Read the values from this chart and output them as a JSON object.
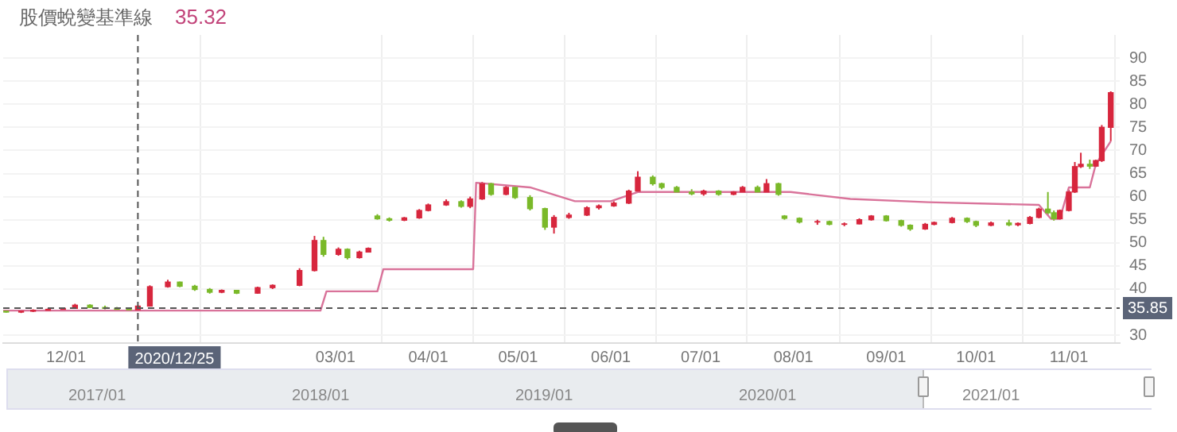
{
  "chart_data": {
    "type": "candlestick",
    "title": "股價蛻變基準線",
    "subtitle": "35.32",
    "x": [
      "2020-11-11",
      "2020-11-16",
      "2020-11-20",
      "2020-11-25",
      "2020-11-30",
      "2020-12-04",
      "2020-12-09",
      "2020-12-14",
      "2020-12-18",
      "2020-12-22",
      "2020-12-25",
      "2020-12-29",
      "2021-01-04",
      "2021-01-08",
      "2021-01-13",
      "2021-01-18",
      "2021-01-22",
      "2021-01-27",
      "2021-02-03",
      "2021-02-08",
      "2021-02-17",
      "2021-02-22",
      "2021-02-25",
      "2021-03-02",
      "2021-03-05",
      "2021-03-09",
      "2021-03-12",
      "2021-03-15",
      "2021-03-19",
      "2021-03-24",
      "2021-03-29",
      "2021-04-01",
      "2021-04-07",
      "2021-04-12",
      "2021-04-15",
      "2021-04-19",
      "2021-04-22",
      "2021-04-27",
      "2021-04-30",
      "2021-05-05",
      "2021-05-10",
      "2021-05-13",
      "2021-05-18",
      "2021-05-24",
      "2021-05-28",
      "2021-06-02",
      "2021-06-07",
      "2021-06-10",
      "2021-06-15",
      "2021-06-18",
      "2021-06-23",
      "2021-06-28",
      "2021-07-02",
      "2021-07-07",
      "2021-07-12",
      "2021-07-15",
      "2021-07-20",
      "2021-07-23",
      "2021-07-27",
      "2021-07-29",
      "2021-08-03",
      "2021-08-09",
      "2021-08-13",
      "2021-08-18",
      "2021-08-23",
      "2021-08-27",
      "2021-09-01",
      "2021-09-06",
      "2021-09-09",
      "2021-09-14",
      "2021-09-17",
      "2021-09-23",
      "2021-09-28",
      "2021-10-01",
      "2021-10-06",
      "2021-10-12",
      "2021-10-15",
      "2021-10-19",
      "2021-10-22",
      "2021-10-25",
      "2021-10-27",
      "2021-10-29",
      "2021-11-01",
      "2021-11-03",
      "2021-11-05",
      "2021-11-08",
      "2021-11-10",
      "2021-11-12",
      "2021-11-15"
    ],
    "ohlc": [
      [
        35.2,
        35.4,
        34.9,
        35.0
      ],
      [
        35.0,
        35.3,
        34.8,
        35.2
      ],
      [
        35.2,
        35.6,
        35.0,
        35.4
      ],
      [
        35.4,
        35.8,
        35.2,
        35.6
      ],
      [
        35.6,
        36.0,
        35.4,
        35.8
      ],
      [
        35.8,
        36.8,
        35.7,
        36.5
      ],
      [
        36.5,
        36.7,
        35.9,
        36.0
      ],
      [
        36.0,
        36.4,
        35.6,
        35.8
      ],
      [
        35.8,
        36.1,
        35.4,
        35.6
      ],
      [
        35.6,
        35.8,
        35.3,
        35.5
      ],
      [
        35.5,
        36.5,
        35.4,
        36.3
      ],
      [
        36.3,
        40.8,
        36.2,
        40.5
      ],
      [
        40.5,
        42.0,
        40.3,
        41.5
      ],
      [
        41.5,
        41.6,
        40.4,
        40.6
      ],
      [
        40.6,
        40.9,
        39.6,
        39.9
      ],
      [
        39.9,
        40.2,
        39.0,
        39.3
      ],
      [
        39.3,
        39.9,
        39.1,
        39.7
      ],
      [
        39.7,
        39.8,
        38.9,
        39.1
      ],
      [
        39.1,
        40.5,
        39.0,
        40.3
      ],
      [
        40.3,
        41.0,
        40.0,
        40.8
      ],
      [
        40.8,
        44.5,
        40.6,
        44.0
      ],
      [
        44.0,
        51.5,
        43.8,
        50.5
      ],
      [
        50.5,
        51.3,
        47.0,
        47.5
      ],
      [
        47.5,
        49.0,
        47.2,
        48.6
      ],
      [
        48.6,
        48.8,
        46.4,
        46.8
      ],
      [
        46.8,
        48.3,
        46.6,
        48.0
      ],
      [
        48.0,
        49.0,
        47.9,
        48.8
      ],
      [
        55.8,
        56.2,
        55.0,
        55.2
      ],
      [
        55.2,
        55.5,
        54.6,
        54.9
      ],
      [
        54.9,
        55.6,
        54.7,
        55.4
      ],
      [
        55.4,
        57.3,
        55.2,
        57.0
      ],
      [
        57.0,
        58.5,
        56.8,
        58.2
      ],
      [
        58.2,
        59.4,
        58.0,
        58.9
      ],
      [
        58.9,
        59.2,
        57.6,
        57.9
      ],
      [
        57.9,
        60.0,
        57.5,
        59.5
      ],
      [
        59.5,
        63.2,
        59.3,
        62.8
      ],
      [
        62.8,
        63.0,
        60.2,
        60.5
      ],
      [
        60.5,
        62.5,
        60.3,
        62.0
      ],
      [
        62.0,
        62.3,
        59.5,
        59.8
      ],
      [
        59.8,
        60.3,
        57.0,
        57.4
      ],
      [
        57.4,
        57.6,
        52.8,
        53.4
      ],
      [
        53.4,
        56.0,
        52.0,
        55.5
      ],
      [
        55.5,
        56.5,
        55.2,
        56.0
      ],
      [
        56.0,
        57.9,
        55.8,
        57.6
      ],
      [
        57.6,
        58.3,
        57.2,
        58.0
      ],
      [
        58.0,
        59.0,
        57.8,
        58.6
      ],
      [
        58.6,
        61.5,
        58.4,
        61.2
      ],
      [
        61.2,
        65.5,
        61.0,
        64.2
      ],
      [
        64.2,
        64.6,
        62.4,
        62.8
      ],
      [
        62.8,
        63.0,
        61.6,
        62.0
      ],
      [
        62.0,
        62.3,
        60.8,
        61.0
      ],
      [
        61.0,
        61.6,
        60.3,
        60.6
      ],
      [
        60.6,
        61.5,
        60.2,
        61.2
      ],
      [
        61.2,
        61.4,
        60.2,
        60.5
      ],
      [
        60.5,
        61.2,
        60.3,
        61.0
      ],
      [
        61.0,
        62.3,
        60.8,
        62.0
      ],
      [
        62.0,
        62.4,
        60.8,
        61.0
      ],
      [
        61.0,
        63.8,
        60.9,
        62.8
      ],
      [
        62.8,
        63.0,
        60.2,
        60.5
      ],
      [
        55.8,
        56.0,
        55.0,
        55.3
      ],
      [
        55.3,
        55.5,
        54.2,
        54.5
      ],
      [
        54.5,
        55.0,
        53.9,
        54.6
      ],
      [
        54.6,
        54.8,
        53.8,
        54.0
      ],
      [
        54.0,
        54.4,
        53.6,
        54.1
      ],
      [
        54.1,
        55.3,
        54.0,
        55.0
      ],
      [
        55.0,
        56.0,
        54.8,
        55.8
      ],
      [
        55.8,
        56.0,
        54.6,
        54.8
      ],
      [
        54.8,
        55.0,
        53.5,
        53.8
      ],
      [
        53.8,
        54.0,
        52.6,
        53.0
      ],
      [
        53.0,
        54.3,
        52.8,
        54.0
      ],
      [
        54.0,
        54.6,
        53.8,
        54.4
      ],
      [
        54.4,
        55.6,
        54.2,
        55.3
      ],
      [
        55.3,
        55.5,
        54.3,
        54.6
      ],
      [
        54.6,
        54.8,
        53.4,
        53.8
      ],
      [
        53.8,
        54.6,
        53.6,
        54.3
      ],
      [
        54.3,
        55.0,
        53.6,
        53.9
      ],
      [
        53.9,
        54.4,
        53.6,
        54.2
      ],
      [
        54.2,
        55.8,
        54.0,
        55.5
      ],
      [
        55.5,
        57.6,
        55.3,
        57.3
      ],
      [
        57.3,
        61.0,
        56.0,
        56.5
      ],
      [
        56.5,
        57.0,
        54.8,
        55.2
      ],
      [
        55.2,
        57.2,
        55.0,
        57.0
      ],
      [
        57.0,
        61.5,
        56.8,
        61.0
      ],
      [
        61.0,
        67.5,
        60.8,
        66.5
      ],
      [
        66.5,
        69.5,
        66.2,
        67.0
      ],
      [
        67.0,
        68.0,
        66.0,
        66.6
      ],
      [
        66.6,
        68.0,
        66.4,
        67.8
      ],
      [
        67.8,
        75.5,
        67.5,
        75.0
      ],
      [
        75.0,
        82.8,
        72.0,
        82.5
      ]
    ],
    "colors": [
      "#7ab929",
      "#d7263d",
      "#d7263d",
      "#d7263d",
      "#d7263d",
      "#d7263d",
      "#7ab929",
      "#7ab929",
      "#7ab929",
      "#7ab929",
      "#d7263d",
      "#d7263d",
      "#d7263d",
      "#7ab929",
      "#7ab929",
      "#7ab929",
      "#d7263d",
      "#7ab929",
      "#d7263d",
      "#d7263d",
      "#d7263d",
      "#d7263d",
      "#7ab929",
      "#d7263d",
      "#7ab929",
      "#d7263d",
      "#d7263d",
      "#7ab929",
      "#7ab929",
      "#d7263d",
      "#d7263d",
      "#d7263d",
      "#d7263d",
      "#7ab929",
      "#d7263d",
      "#d7263d",
      "#7ab929",
      "#d7263d",
      "#7ab929",
      "#7ab929",
      "#7ab929",
      "#d7263d",
      "#d7263d",
      "#d7263d",
      "#d7263d",
      "#d7263d",
      "#d7263d",
      "#d7263d",
      "#7ab929",
      "#7ab929",
      "#7ab929",
      "#7ab929",
      "#d7263d",
      "#7ab929",
      "#d7263d",
      "#d7263d",
      "#7ab929",
      "#d7263d",
      "#7ab929",
      "#7ab929",
      "#7ab929",
      "#d7263d",
      "#7ab929",
      "#d7263d",
      "#d7263d",
      "#d7263d",
      "#7ab929",
      "#7ab929",
      "#7ab929",
      "#d7263d",
      "#d7263d",
      "#d7263d",
      "#7ab929",
      "#7ab929",
      "#d7263d",
      "#7ab929",
      "#d7263d",
      "#d7263d",
      "#d7263d",
      "#7ab929",
      "#7ab929",
      "#d7263d",
      "#d7263d",
      "#d7263d",
      "#d7263d",
      "#7ab929",
      "#d7263d",
      "#d7263d",
      "#d7263d"
    ],
    "series": [
      {
        "type": "line",
        "color": "#d9739a",
        "x": [
          "2020-11-10",
          "2021-02-24",
          "2021-02-26",
          "2021-03-15",
          "2021-03-17",
          "2021-04-16",
          "2021-04-17",
          "2021-05-05",
          "2021-05-20",
          "2021-06-01",
          "2021-06-10",
          "2021-07-31",
          "2021-08-20",
          "2021-09-15",
          "2021-10-22",
          "2021-10-26",
          "2021-10-29",
          "2021-11-01",
          "2021-11-08",
          "2021-11-10",
          "2021-11-15"
        ],
        "values": [
          35.32,
          35.32,
          39.5,
          39.5,
          44.3,
          44.3,
          63.0,
          62.0,
          59.0,
          59.0,
          61.0,
          61.0,
          59.5,
          58.8,
          58.2,
          55.2,
          55.2,
          62.0,
          62.0,
          67.0,
          72.0
        ]
      }
    ],
    "xlim": [
      "2020-11-10",
      "2021-11-18"
    ],
    "xticks": [
      {
        "value": "2020-12-01",
        "label": "12/01"
      },
      {
        "value": "2021-03-01",
        "label": "03/01"
      },
      {
        "value": "2021-04-01",
        "label": "04/01"
      },
      {
        "value": "2021-05-01",
        "label": "05/01"
      },
      {
        "value": "2021-06-01",
        "label": "06/01"
      },
      {
        "value": "2021-07-01",
        "label": "07/01"
      },
      {
        "value": "2021-08-01",
        "label": "08/01"
      },
      {
        "value": "2021-09-01",
        "label": "09/01"
      },
      {
        "value": "2021-10-01",
        "label": "10/01"
      },
      {
        "value": "2021-11-01",
        "label": "11/01"
      }
    ],
    "ylim": [
      28.3,
      95
    ],
    "yticks": [
      30,
      40,
      45,
      50,
      55,
      60,
      65,
      70,
      75,
      80,
      85,
      90
    ],
    "grid": true,
    "ref_lines": [
      {
        "axis": "y",
        "value": 35.85,
        "label": "35.85",
        "color": "#555555",
        "line_style": "dashed"
      },
      {
        "axis": "x",
        "value": "2020-12-25",
        "label": "2020/12/25",
        "color": "#555555",
        "line_style": "dashed"
      }
    ],
    "annotations": [
      "2017/01",
      "2018/01",
      "2019/01",
      "2020/01",
      "2021/01"
    ]
  }
}
